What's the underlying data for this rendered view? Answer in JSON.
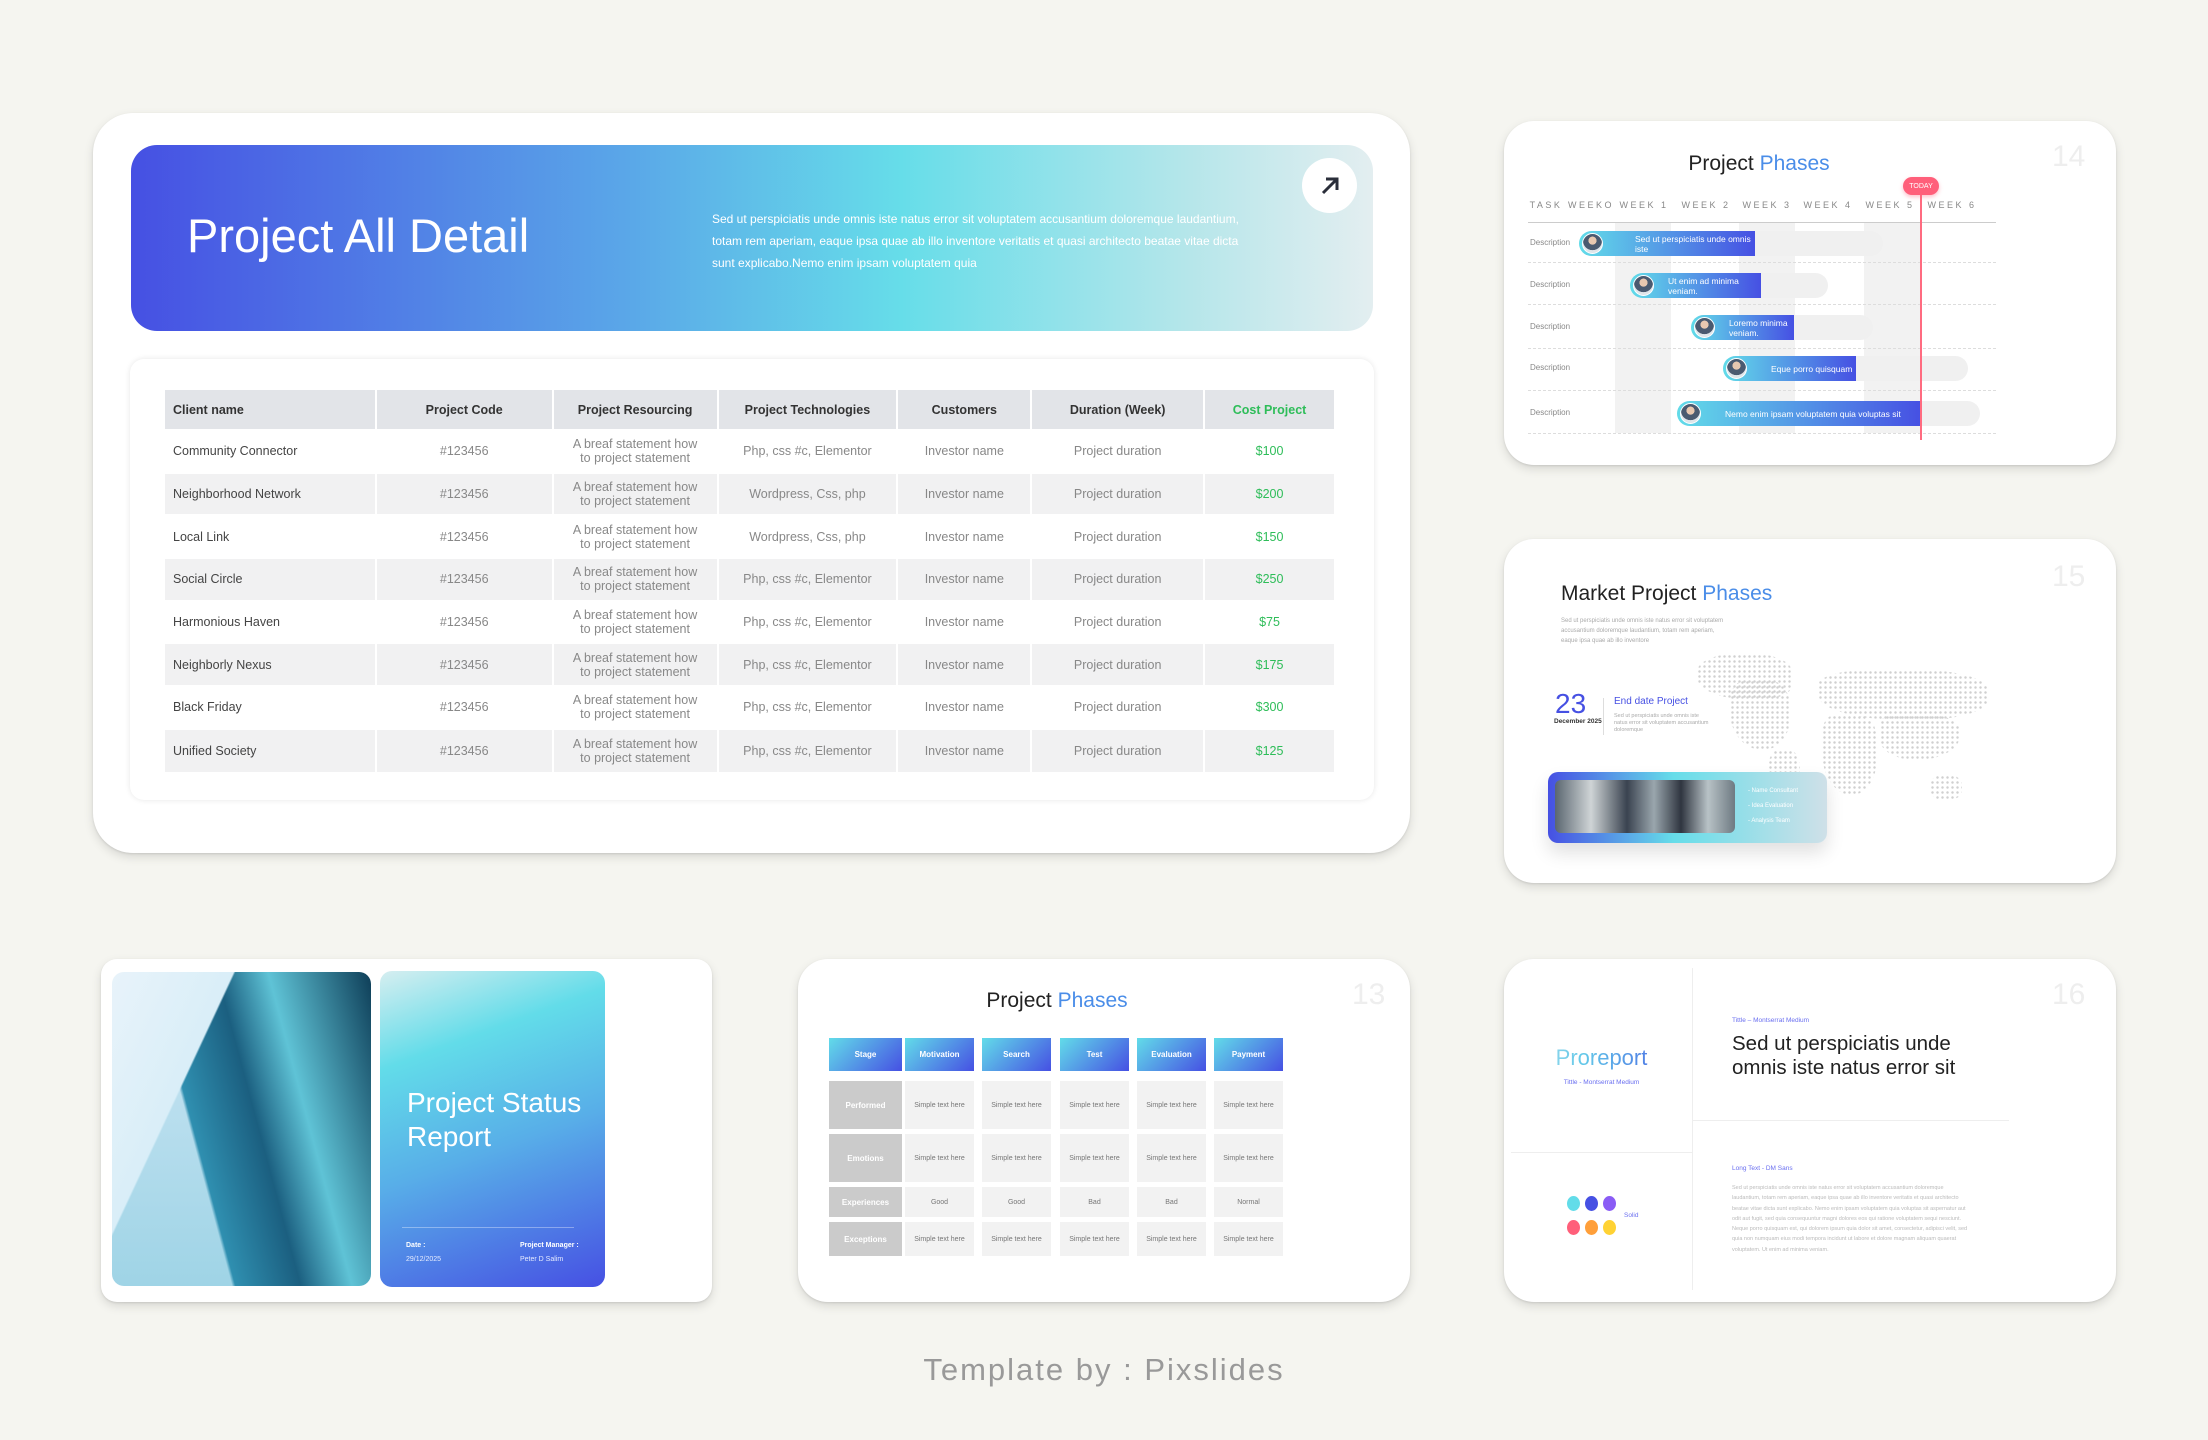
{
  "main": {
    "title": "Project All Detail",
    "description": "Sed ut perspiciatis unde omnis iste natus error  sit voluptatem accusantium doloremque laudantium, totam rem aperiam, eaque ipsa quae ab illo inventore veritatis et quasi architecto beatae vitae dicta sunt explicabo.Nemo enim ipsam voluptatem quia",
    "open_icon": "arrow-up-right-icon",
    "table": {
      "headers": [
        "Client name",
        "Project Code",
        "Project Resourcing",
        "Project Technologies",
        "Customers",
        "Duration (Week)",
        "Cost Project"
      ],
      "rows": [
        [
          "Community Connector",
          "#123456",
          "A breaf statement how to project statement",
          "Php, css #c, Elementor",
          "Investor name",
          "Project duration",
          "$100"
        ],
        [
          "Neighborhood Network",
          "#123456",
          "A breaf statement how to project statement",
          "Wordpress, Css, php",
          "Investor name",
          "Project duration",
          "$200"
        ],
        [
          "Local Link",
          "#123456",
          "A breaf statement how to project statement",
          "Wordpress, Css, php",
          "Investor name",
          "Project duration",
          "$150"
        ],
        [
          "Social Circle",
          "#123456",
          "A breaf statement how to project statement",
          "Php, css #c, Elementor",
          "Investor name",
          "Project duration",
          "$250"
        ],
        [
          "Harmonious Haven",
          "#123456",
          "A breaf statement how to project statement",
          "Php, css #c, Elementor",
          "Investor name",
          "Project duration",
          "$75"
        ],
        [
          "Neighborly Nexus",
          "#123456",
          "A breaf statement how to project statement",
          "Php, css #c, Elementor",
          "Investor name",
          "Project duration",
          "$175"
        ],
        [
          "Black Friday",
          "#123456",
          "A breaf statement how to project statement",
          "Php, css #c, Elementor",
          "Investor name",
          "Project duration",
          "$300"
        ],
        [
          "Unified Society",
          "#123456",
          "A breaf statement how to project statement",
          "Php, css #c, Elementor",
          "Investor name",
          "Project duration",
          "$125"
        ]
      ]
    }
  },
  "gantt": {
    "title_a": "Project",
    "title_b": "Phases",
    "page": "14",
    "today": "TODAY",
    "columns": [
      "TASK",
      "WEEKO",
      "WEEK 1",
      "WEEK 2",
      "WEEK 3",
      "WEEK 4",
      "WEEK 5",
      "WEEK 6"
    ],
    "rows": [
      {
        "label": "Description",
        "text": "Sed ut perspiciatis unde omnis iste"
      },
      {
        "label": "Description",
        "text": "Ut enim ad minima veniam."
      },
      {
        "label": "Description",
        "text": "Loremo minima veniam."
      },
      {
        "label": "Description",
        "text": "Eque porro quisquam"
      },
      {
        "label": "Description",
        "text": "Nemo enim ipsam voluptatem quia voluptas sit"
      }
    ]
  },
  "market": {
    "title_a": "Market Project",
    "title_b": "Phases",
    "page": "15",
    "intro": "Sed ut perspiciatis unde omnis iste natus error sit voluptatem accusantium doloremque laudantium, totam rem aperiam, eaque ipsa quae ab illo inventore",
    "day": "23",
    "month": "December 2025",
    "end_label": "End date Project",
    "end_desc": "Sed ut perspiciatis unde omnis iste natus error sit voluptatem accusantium doloremque",
    "list": [
      "- Name Consultant",
      "- Idea Evaluation",
      "- Analysis Team"
    ]
  },
  "status": {
    "title": "Project Status Report",
    "date_label": "Date :",
    "date": "29/12/2025",
    "pm_label": "Project Manager :",
    "pm": "Peter D Salim"
  },
  "phases": {
    "title_a": "Project",
    "title_b": "Phases",
    "page": "13",
    "headers": [
      "Stage",
      "Motivation",
      "Search",
      "Test",
      "Evaluation",
      "Payment"
    ],
    "rows": [
      [
        "Performed",
        "Simple text here",
        "Simple text here",
        "Simple text here",
        "Simple text here",
        "Simple text here"
      ],
      [
        "Emotions",
        "Simple text here",
        "Simple text here",
        "Simple text here",
        "Simple text here",
        "Simple text here"
      ],
      [
        "Experiences",
        "Good",
        "Good",
        "Bad",
        "Bad",
        "Normal"
      ],
      [
        "Exceptions",
        "Simple text here",
        "Simple text here",
        "Simple text here",
        "Simple text here",
        "Simple text here"
      ]
    ]
  },
  "proreport": {
    "logo": "Proreport",
    "logo_caption": "Tittle  - Montserrat Medium",
    "solid_label": "Solid",
    "colors": [
      "#62dce9",
      "#4650e3",
      "#8a5cf5",
      "#ff5f7a",
      "#ff9f3a",
      "#ffd234"
    ],
    "title_caption": "Tittle  – Montserrat Medium",
    "heading": "Sed ut perspiciatis unde omnis iste natus error sit",
    "long_label": "Long Text - DM Sans",
    "long_text": "Sed ut perspiciatis unde omnis iste natus error  sit voluptatem accusantium doloremque laudantium, totam rem aperiam, eaque ipsa quae ab illo inventore veritatis et quasi architecto beatae vitae dicta sunt explicabo. Nemo enim ipsam voluptatem quia voluptas sit aspernatur aut odit aut fugit, sed quia consequuntur magni dolores eos qui ratione voluptatem sequi nesciunt. Neque porro quisquam est, qui dolorem ipsum quia dolor sit amet, consectetur, adipisci velit, sed quia non numquam eius modi tempora incidunt ut labore et dolore magnam aliquam quaerat voluptatem. Ut enim ad minima veniam.",
    "page": "16"
  },
  "footer": "Template by : Pixslides"
}
